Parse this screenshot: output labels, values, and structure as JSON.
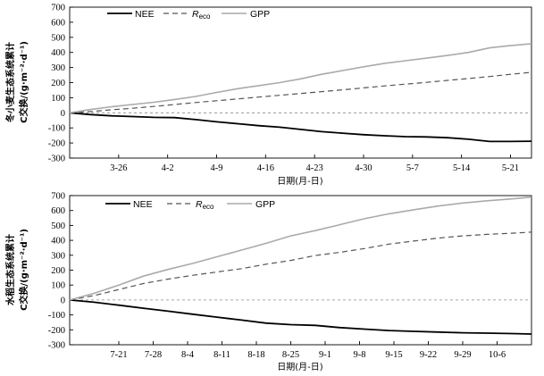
{
  "chart_data": [
    {
      "type": "line",
      "ylabel_line1": "冬小麦生态系统累计",
      "ylabel_line2": "C交换/(g·m⁻²·d⁻¹)",
      "xlabel": "日期(月-日)",
      "ylim": [
        -300,
        700
      ],
      "yticks": [
        -300,
        -200,
        -100,
        0,
        100,
        200,
        300,
        400,
        500,
        600,
        700
      ],
      "xlim": [
        0,
        66
      ],
      "xticks": [
        {
          "x": 7,
          "label": "3-26"
        },
        {
          "x": 14,
          "label": "4-2"
        },
        {
          "x": 21,
          "label": "4-9"
        },
        {
          "x": 28,
          "label": "4-16"
        },
        {
          "x": 35,
          "label": "4-23"
        },
        {
          "x": 42,
          "label": "4-30"
        },
        {
          "x": 49,
          "label": "5-7"
        },
        {
          "x": 56,
          "label": "5-14"
        },
        {
          "x": 63,
          "label": "5-21"
        }
      ],
      "legend": [
        {
          "name": "NEE",
          "style": "solid"
        },
        {
          "name": "R",
          "sub": "eco",
          "style": "dashed"
        },
        {
          "name": "GPP",
          "style": "gray"
        }
      ],
      "x": [
        0,
        3,
        6,
        9,
        12,
        15,
        18,
        21,
        24,
        27,
        30,
        33,
        36,
        39,
        42,
        45,
        48,
        51,
        54,
        57,
        60,
        63,
        66
      ],
      "series": [
        {
          "name": "NEE",
          "values": [
            0,
            -12,
            -20,
            -25,
            -30,
            -32,
            -45,
            -60,
            -72,
            -85,
            -95,
            -110,
            -125,
            -135,
            -145,
            -152,
            -158,
            -160,
            -165,
            -175,
            -190,
            -190,
            -188
          ]
        },
        {
          "name": "Reco",
          "values": [
            0,
            8,
            20,
            30,
            42,
            55,
            68,
            80,
            92,
            104,
            116,
            128,
            140,
            152,
            165,
            178,
            190,
            202,
            215,
            227,
            240,
            255,
            268
          ]
        },
        {
          "name": "GPP",
          "values": [
            0,
            22,
            40,
            55,
            70,
            88,
            108,
            135,
            160,
            180,
            200,
            225,
            255,
            280,
            305,
            328,
            345,
            362,
            380,
            400,
            430,
            445,
            458
          ]
        }
      ]
    },
    {
      "type": "line",
      "ylabel_line1": "水稻生态系统累计",
      "ylabel_line2": "C交换/(g·m⁻²·d⁻¹)",
      "xlabel": "日期(月-日)",
      "ylim": [
        -300,
        700
      ],
      "yticks": [
        -300,
        -200,
        -100,
        0,
        100,
        200,
        300,
        400,
        500,
        600,
        700
      ],
      "xlim": [
        0,
        94
      ],
      "xticks": [
        {
          "x": 10,
          "label": "7-21"
        },
        {
          "x": 17,
          "label": "7-28"
        },
        {
          "x": 24,
          "label": "8-4"
        },
        {
          "x": 31,
          "label": "8-11"
        },
        {
          "x": 38,
          "label": "8-18"
        },
        {
          "x": 45,
          "label": "8-25"
        },
        {
          "x": 52,
          "label": "9-1"
        },
        {
          "x": 59,
          "label": "9-8"
        },
        {
          "x": 66,
          "label": "9-15"
        },
        {
          "x": 73,
          "label": "9-22"
        },
        {
          "x": 80,
          "label": "9-29"
        },
        {
          "x": 87,
          "label": "10-6"
        }
      ],
      "legend": [
        {
          "name": "NEE",
          "style": "solid"
        },
        {
          "name": "R",
          "sub": "eco",
          "style": "dashed"
        },
        {
          "name": "GPP",
          "style": "gray"
        }
      ],
      "x": [
        0,
        5,
        10,
        15,
        20,
        25,
        30,
        35,
        40,
        45,
        50,
        55,
        60,
        65,
        70,
        75,
        80,
        85,
        90,
        94
      ],
      "series": [
        {
          "name": "NEE",
          "values": [
            0,
            -15,
            -35,
            -55,
            -75,
            -95,
            -115,
            -135,
            -155,
            -165,
            -170,
            -185,
            -195,
            -205,
            -210,
            -215,
            -220,
            -222,
            -225,
            -228
          ]
        },
        {
          "name": "Reco",
          "values": [
            0,
            30,
            70,
            110,
            140,
            165,
            188,
            210,
            240,
            265,
            298,
            320,
            345,
            375,
            395,
            415,
            430,
            440,
            448,
            455
          ]
        },
        {
          "name": "GPP",
          "values": [
            0,
            45,
            100,
            160,
            205,
            245,
            290,
            335,
            380,
            430,
            465,
            505,
            545,
            578,
            605,
            630,
            650,
            665,
            678,
            690
          ]
        }
      ]
    }
  ]
}
